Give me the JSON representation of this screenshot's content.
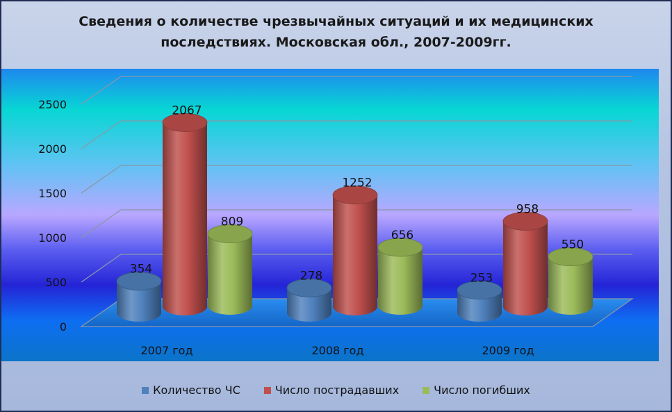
{
  "chart_data": {
    "type": "bar",
    "title": [
      "Сведения о количестве чрезвычайных ситуаций и их медицинских",
      "последствиях. Московская обл., 2007-2009гг."
    ],
    "categories": [
      "2007 год",
      "2008 год",
      "2009 год"
    ],
    "series": [
      {
        "name": "Количество ЧС",
        "values": [
          354,
          278,
          253
        ],
        "color": "#4f81bd"
      },
      {
        "name": "Число пострадавших",
        "values": [
          2067,
          1252,
          958
        ],
        "color": "#c0504d"
      },
      {
        "name": "Число погибших",
        "values": [
          809,
          656,
          550
        ],
        "color": "#9bbb59"
      }
    ],
    "ylim": [
      0,
      2500
    ],
    "yticks": [
      "0",
      "500",
      "1000",
      "1500",
      "2000",
      "2500"
    ],
    "grid": true,
    "legend_position": "bottom",
    "style": "3d-cylinder"
  }
}
